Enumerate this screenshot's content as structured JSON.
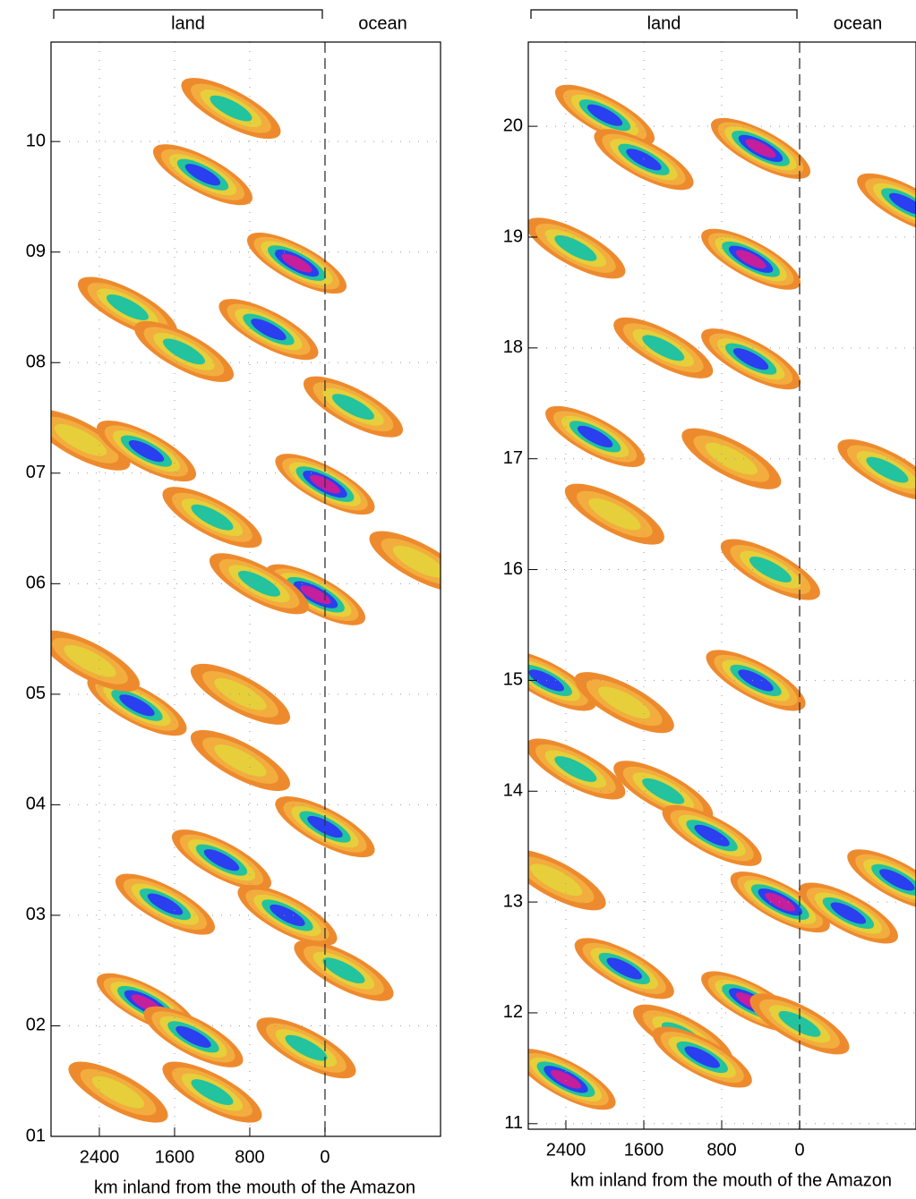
{
  "chart_data": [
    {
      "type": "contour",
      "land_label": "land",
      "ocean_label": "ocean",
      "xlabel": "km inland from the mouth of the Amazon",
      "xlim": [
        2914,
        -1229
      ],
      "ylim": [
        1,
        10.9
      ],
      "xticks": [
        2400,
        1600,
        800,
        0
      ],
      "yticks": [
        {
          "value": 1,
          "label": "01"
        },
        {
          "value": 2,
          "label": "02"
        },
        {
          "value": 3,
          "label": "03"
        },
        {
          "value": 4,
          "label": "04"
        },
        {
          "value": 5,
          "label": "05"
        },
        {
          "value": 6,
          "label": "06"
        },
        {
          "value": 7,
          "label": "07"
        },
        {
          "value": 8,
          "label": "08"
        },
        {
          "value": 9,
          "label": "09"
        },
        {
          "value": 10,
          "label": "10"
        }
      ],
      "colors": [
        "#ee8a2e",
        "#f2ad3e",
        "#e6cf3a",
        "#22c39e",
        "#2a3ff0",
        "#c51f9c"
      ],
      "features": {
        "x": [
          1000,
          1300,
          300,
          2100,
          1500,
          600,
          -300,
          2600,
          1900,
          0,
          1200,
          100,
          700,
          -1000,
          2000,
          2500,
          900,
          1100,
          0,
          1700,
          400,
          1900,
          1400,
          200,
          1200,
          2200,
          -200,
          900
        ],
        "y": [
          10.3,
          9.7,
          8.9,
          8.5,
          8.1,
          8.3,
          7.6,
          7.3,
          7.2,
          6.9,
          6.6,
          5.9,
          6.0,
          6.2,
          4.9,
          5.3,
          4.4,
          3.5,
          3.8,
          3.1,
          3.0,
          2.2,
          1.9,
          1.8,
          1.4,
          1.4,
          2.5,
          5.0
        ],
        "level": [
          4,
          5,
          6,
          4,
          4,
          5,
          4,
          3,
          5,
          6,
          4,
          6,
          4,
          3,
          5,
          3,
          3,
          5,
          5,
          5,
          5,
          6,
          5,
          4,
          4,
          3,
          4,
          3
        ]
      }
    },
    {
      "type": "contour",
      "land_label": "land",
      "ocean_label": "ocean",
      "xlabel": "km inland from the mouth of the Amazon",
      "xlim": [
        2786,
        -1195
      ],
      "ylim": [
        10.95,
        20.76
      ],
      "xticks": [
        2400,
        1600,
        800,
        0
      ],
      "yticks": [
        11,
        12,
        13,
        14,
        15,
        16,
        17,
        18,
        19,
        20
      ],
      "colors": [
        "#ee8a2e",
        "#f2ad3e",
        "#e6cf3a",
        "#22c39e",
        "#2a3ff0",
        "#c51f9c"
      ],
      "features": {
        "x": [
          2000,
          1600,
          400,
          500,
          2300,
          -1100,
          1400,
          500,
          2100,
          700,
          -900,
          1900,
          300,
          2600,
          450,
          1800,
          2300,
          1400,
          900,
          200,
          -500,
          -1000,
          2500,
          1800,
          500,
          1200,
          2400,
          1000,
          0
        ],
        "y": [
          20.1,
          19.7,
          19.8,
          18.8,
          18.9,
          19.3,
          18.0,
          17.9,
          17.2,
          17.0,
          16.9,
          16.5,
          16.0,
          15.0,
          15.0,
          14.8,
          14.2,
          14.0,
          13.6,
          13.0,
          12.9,
          13.2,
          13.2,
          12.4,
          12.1,
          11.8,
          11.4,
          11.6,
          11.9
        ],
        "level": [
          5,
          5,
          6,
          6,
          4,
          5,
          4,
          5,
          5,
          3,
          4,
          3,
          4,
          5,
          5,
          3,
          4,
          4,
          5,
          6,
          5,
          5,
          3,
          5,
          6,
          4,
          6,
          5,
          4
        ]
      }
    }
  ]
}
